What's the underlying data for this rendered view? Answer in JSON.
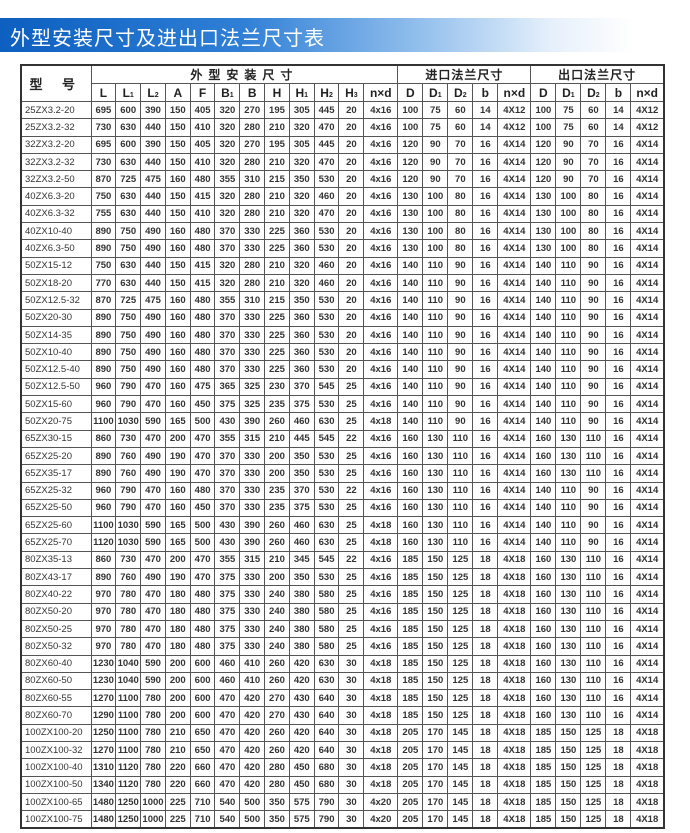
{
  "title": "外型安装尺寸及进出口法兰尺寸表",
  "header": {
    "model": "型 号",
    "groups": [
      "外型安装尺寸",
      "进口法兰尺寸",
      "出口法兰尺寸"
    ],
    "columns": [
      "L",
      "L1",
      "L2",
      "A",
      "F",
      "B1",
      "B",
      "H",
      "H1",
      "H2",
      "H3",
      "n×d",
      "D",
      "D1",
      "D2",
      "b",
      "n×d",
      "D",
      "D1",
      "D2",
      "b",
      "n×d"
    ]
  },
  "rows": [
    [
      "25ZX3.2-20",
      "695",
      "600",
      "390",
      "150",
      "405",
      "320",
      "270",
      "195",
      "305",
      "445",
      "20",
      "4x16",
      "100",
      "75",
      "60",
      "14",
      "4X12",
      "100",
      "75",
      "60",
      "14",
      "4X12"
    ],
    [
      "25ZX3.2-32",
      "730",
      "630",
      "440",
      "150",
      "410",
      "320",
      "280",
      "210",
      "320",
      "470",
      "20",
      "4x16",
      "100",
      "75",
      "60",
      "14",
      "4X12",
      "100",
      "75",
      "60",
      "14",
      "4X12"
    ],
    [
      "32ZX3.2-20",
      "695",
      "600",
      "390",
      "150",
      "405",
      "320",
      "270",
      "195",
      "305",
      "445",
      "20",
      "4x16",
      "120",
      "90",
      "70",
      "16",
      "4X14",
      "120",
      "90",
      "70",
      "16",
      "4X14"
    ],
    [
      "32ZX3.2-32",
      "730",
      "630",
      "440",
      "150",
      "410",
      "320",
      "280",
      "210",
      "320",
      "470",
      "20",
      "4x16",
      "120",
      "90",
      "70",
      "16",
      "4X14",
      "120",
      "90",
      "70",
      "16",
      "4X14"
    ],
    [
      "32ZX3.2-50",
      "870",
      "725",
      "475",
      "160",
      "480",
      "355",
      "310",
      "215",
      "350",
      "530",
      "20",
      "4x16",
      "120",
      "90",
      "70",
      "16",
      "4X14",
      "120",
      "90",
      "70",
      "16",
      "4X14"
    ],
    [
      "40ZX6.3-20",
      "750",
      "630",
      "440",
      "150",
      "415",
      "320",
      "280",
      "210",
      "320",
      "460",
      "20",
      "4x16",
      "130",
      "100",
      "80",
      "16",
      "4X14",
      "130",
      "100",
      "80",
      "16",
      "4X14"
    ],
    [
      "40ZX6.3-32",
      "755",
      "630",
      "440",
      "150",
      "410",
      "320",
      "280",
      "210",
      "320",
      "470",
      "20",
      "4x16",
      "130",
      "100",
      "80",
      "16",
      "4X14",
      "130",
      "100",
      "80",
      "16",
      "4X14"
    ],
    [
      "40ZX10-40",
      "890",
      "750",
      "490",
      "160",
      "480",
      "370",
      "330",
      "225",
      "360",
      "530",
      "20",
      "4x16",
      "130",
      "100",
      "80",
      "16",
      "4X14",
      "130",
      "100",
      "80",
      "16",
      "4X14"
    ],
    [
      "40ZX6.3-50",
      "890",
      "750",
      "490",
      "160",
      "480",
      "370",
      "330",
      "225",
      "360",
      "530",
      "20",
      "4x16",
      "130",
      "100",
      "80",
      "16",
      "4X14",
      "130",
      "100",
      "80",
      "16",
      "4X14"
    ],
    [
      "50ZX15-12",
      "750",
      "630",
      "440",
      "150",
      "415",
      "320",
      "280",
      "210",
      "320",
      "460",
      "20",
      "4x16",
      "140",
      "110",
      "90",
      "16",
      "4X14",
      "140",
      "110",
      "90",
      "16",
      "4X14"
    ],
    [
      "50ZX18-20",
      "770",
      "630",
      "440",
      "150",
      "415",
      "320",
      "280",
      "210",
      "320",
      "460",
      "20",
      "4x16",
      "140",
      "110",
      "90",
      "16",
      "4X14",
      "140",
      "110",
      "90",
      "16",
      "4X14"
    ],
    [
      "50ZX12.5-32",
      "870",
      "725",
      "475",
      "160",
      "480",
      "355",
      "310",
      "215",
      "350",
      "530",
      "20",
      "4x16",
      "140",
      "110",
      "90",
      "16",
      "4X14",
      "140",
      "110",
      "90",
      "16",
      "4X14"
    ],
    [
      "50ZX20-30",
      "890",
      "750",
      "490",
      "160",
      "480",
      "370",
      "330",
      "225",
      "360",
      "530",
      "20",
      "4x16",
      "140",
      "110",
      "90",
      "16",
      "4X14",
      "140",
      "110",
      "90",
      "16",
      "4X14"
    ],
    [
      "50ZX14-35",
      "890",
      "750",
      "490",
      "160",
      "480",
      "370",
      "330",
      "225",
      "360",
      "530",
      "20",
      "4x16",
      "140",
      "110",
      "90",
      "16",
      "4X14",
      "140",
      "110",
      "90",
      "16",
      "4X14"
    ],
    [
      "50ZX10-40",
      "890",
      "750",
      "490",
      "160",
      "480",
      "370",
      "330",
      "225",
      "360",
      "530",
      "20",
      "4x16",
      "140",
      "110",
      "90",
      "16",
      "4X14",
      "140",
      "110",
      "90",
      "16",
      "4X14"
    ],
    [
      "50ZX12.5-40",
      "890",
      "750",
      "490",
      "160",
      "480",
      "370",
      "330",
      "225",
      "360",
      "530",
      "20",
      "4x16",
      "140",
      "110",
      "90",
      "16",
      "4X14",
      "140",
      "110",
      "90",
      "16",
      "4X14"
    ],
    [
      "50ZX12.5-50",
      "960",
      "790",
      "470",
      "160",
      "475",
      "365",
      "325",
      "230",
      "370",
      "545",
      "25",
      "4x16",
      "140",
      "110",
      "90",
      "16",
      "4X14",
      "140",
      "110",
      "90",
      "16",
      "4X14"
    ],
    [
      "50ZX15-60",
      "960",
      "790",
      "470",
      "160",
      "450",
      "375",
      "325",
      "235",
      "375",
      "530",
      "25",
      "4x16",
      "140",
      "110",
      "90",
      "16",
      "4X14",
      "140",
      "110",
      "90",
      "16",
      "4X14"
    ],
    [
      "50ZX20-75",
      "1100",
      "1030",
      "590",
      "165",
      "500",
      "430",
      "390",
      "260",
      "460",
      "630",
      "25",
      "4x18",
      "140",
      "110",
      "90",
      "16",
      "4X14",
      "140",
      "110",
      "90",
      "16",
      "4X14"
    ],
    [
      "65ZX30-15",
      "860",
      "730",
      "470",
      "200",
      "470",
      "355",
      "315",
      "210",
      "445",
      "545",
      "22",
      "4x16",
      "160",
      "130",
      "110",
      "16",
      "4X14",
      "160",
      "130",
      "110",
      "16",
      "4X14"
    ],
    [
      "65ZX25-20",
      "890",
      "760",
      "490",
      "190",
      "470",
      "370",
      "330",
      "200",
      "350",
      "530",
      "25",
      "4x16",
      "160",
      "130",
      "110",
      "16",
      "4X14",
      "160",
      "130",
      "110",
      "16",
      "4X14"
    ],
    [
      "65ZX35-17",
      "890",
      "760",
      "490",
      "190",
      "470",
      "370",
      "330",
      "200",
      "350",
      "530",
      "25",
      "4x16",
      "160",
      "130",
      "110",
      "16",
      "4X14",
      "160",
      "130",
      "110",
      "16",
      "4X14"
    ],
    [
      "65ZX25-32",
      "960",
      "790",
      "470",
      "160",
      "480",
      "370",
      "330",
      "235",
      "370",
      "530",
      "22",
      "4x16",
      "160",
      "130",
      "110",
      "16",
      "4X14",
      "140",
      "110",
      "90",
      "16",
      "4X14"
    ],
    [
      "65ZX25-50",
      "960",
      "790",
      "470",
      "160",
      "450",
      "370",
      "330",
      "235",
      "375",
      "530",
      "25",
      "4x16",
      "160",
      "130",
      "110",
      "16",
      "4X14",
      "140",
      "110",
      "90",
      "16",
      "4X14"
    ],
    [
      "65ZX25-60",
      "1100",
      "1030",
      "590",
      "165",
      "500",
      "430",
      "390",
      "260",
      "460",
      "630",
      "25",
      "4x18",
      "160",
      "130",
      "110",
      "16",
      "4X14",
      "140",
      "110",
      "90",
      "16",
      "4X14"
    ],
    [
      "65ZX25-70",
      "1120",
      "1030",
      "590",
      "165",
      "500",
      "430",
      "390",
      "260",
      "460",
      "630",
      "25",
      "4x18",
      "160",
      "130",
      "110",
      "16",
      "4X14",
      "140",
      "110",
      "90",
      "16",
      "4X14"
    ],
    [
      "80ZX35-13",
      "860",
      "730",
      "470",
      "200",
      "470",
      "355",
      "315",
      "210",
      "345",
      "545",
      "22",
      "4x16",
      "185",
      "150",
      "125",
      "18",
      "4X18",
      "160",
      "130",
      "110",
      "16",
      "4X14"
    ],
    [
      "80ZX43-17",
      "890",
      "760",
      "490",
      "190",
      "470",
      "375",
      "330",
      "200",
      "350",
      "530",
      "25",
      "4x16",
      "185",
      "150",
      "125",
      "18",
      "4X18",
      "160",
      "130",
      "110",
      "16",
      "4X14"
    ],
    [
      "80ZX40-22",
      "970",
      "780",
      "470",
      "180",
      "480",
      "375",
      "330",
      "240",
      "380",
      "580",
      "25",
      "4x16",
      "185",
      "150",
      "125",
      "18",
      "4X18",
      "160",
      "130",
      "110",
      "16",
      "4X14"
    ],
    [
      "80ZX50-20",
      "970",
      "780",
      "470",
      "180",
      "480",
      "375",
      "330",
      "240",
      "380",
      "580",
      "25",
      "4x16",
      "185",
      "150",
      "125",
      "18",
      "4X18",
      "160",
      "130",
      "110",
      "16",
      "4X14"
    ],
    [
      "80ZX50-25",
      "970",
      "780",
      "470",
      "180",
      "480",
      "375",
      "330",
      "240",
      "380",
      "580",
      "25",
      "4x16",
      "185",
      "150",
      "125",
      "18",
      "4X18",
      "160",
      "130",
      "110",
      "16",
      "4X14"
    ],
    [
      "80ZX50-32",
      "970",
      "780",
      "470",
      "180",
      "480",
      "375",
      "330",
      "240",
      "380",
      "580",
      "25",
      "4x16",
      "185",
      "150",
      "125",
      "18",
      "4X18",
      "160",
      "130",
      "110",
      "16",
      "4X14"
    ],
    [
      "80ZX60-40",
      "1230",
      "1040",
      "590",
      "200",
      "600",
      "460",
      "410",
      "260",
      "420",
      "630",
      "30",
      "4x18",
      "185",
      "150",
      "125",
      "18",
      "4X18",
      "160",
      "130",
      "110",
      "16",
      "4X14"
    ],
    [
      "80ZX60-50",
      "1230",
      "1040",
      "590",
      "200",
      "600",
      "460",
      "410",
      "260",
      "420",
      "630",
      "30",
      "4x18",
      "185",
      "150",
      "125",
      "18",
      "4X18",
      "160",
      "130",
      "110",
      "16",
      "4X14"
    ],
    [
      "80ZX60-55",
      "1270",
      "1100",
      "780",
      "200",
      "600",
      "470",
      "420",
      "270",
      "430",
      "640",
      "30",
      "4x18",
      "185",
      "150",
      "125",
      "18",
      "4X18",
      "160",
      "130",
      "110",
      "16",
      "4X14"
    ],
    [
      "80ZX60-70",
      "1290",
      "1100",
      "780",
      "200",
      "600",
      "470",
      "420",
      "270",
      "430",
      "640",
      "30",
      "4x18",
      "185",
      "150",
      "125",
      "18",
      "4X18",
      "160",
      "130",
      "110",
      "16",
      "4X14"
    ],
    [
      "100ZX100-20",
      "1250",
      "1100",
      "780",
      "210",
      "650",
      "470",
      "420",
      "260",
      "420",
      "640",
      "30",
      "4x18",
      "205",
      "170",
      "145",
      "18",
      "4X18",
      "185",
      "150",
      "125",
      "18",
      "4X18"
    ],
    [
      "100ZX100-32",
      "1270",
      "1100",
      "780",
      "210",
      "650",
      "470",
      "420",
      "260",
      "420",
      "640",
      "30",
      "4x18",
      "205",
      "170",
      "145",
      "18",
      "4X18",
      "185",
      "150",
      "125",
      "18",
      "4X18"
    ],
    [
      "100ZX100-40",
      "1310",
      "1120",
      "780",
      "220",
      "660",
      "470",
      "420",
      "280",
      "450",
      "680",
      "30",
      "4x18",
      "205",
      "170",
      "145",
      "18",
      "4X18",
      "185",
      "150",
      "125",
      "18",
      "4X18"
    ],
    [
      "100ZX100-50",
      "1340",
      "1120",
      "780",
      "220",
      "660",
      "470",
      "420",
      "280",
      "450",
      "680",
      "30",
      "4x18",
      "205",
      "170",
      "145",
      "18",
      "4X18",
      "185",
      "150",
      "125",
      "18",
      "4X18"
    ],
    [
      "100ZX100-65",
      "1480",
      "1250",
      "1000",
      "225",
      "710",
      "540",
      "500",
      "350",
      "575",
      "790",
      "30",
      "4x20",
      "205",
      "170",
      "145",
      "18",
      "4X18",
      "185",
      "150",
      "125",
      "18",
      "4X18"
    ],
    [
      "100ZX100-75",
      "1480",
      "1250",
      "1000",
      "225",
      "710",
      "540",
      "500",
      "350",
      "575",
      "790",
      "30",
      "4x20",
      "205",
      "170",
      "145",
      "18",
      "4X18",
      "185",
      "150",
      "125",
      "18",
      "4X18"
    ]
  ]
}
